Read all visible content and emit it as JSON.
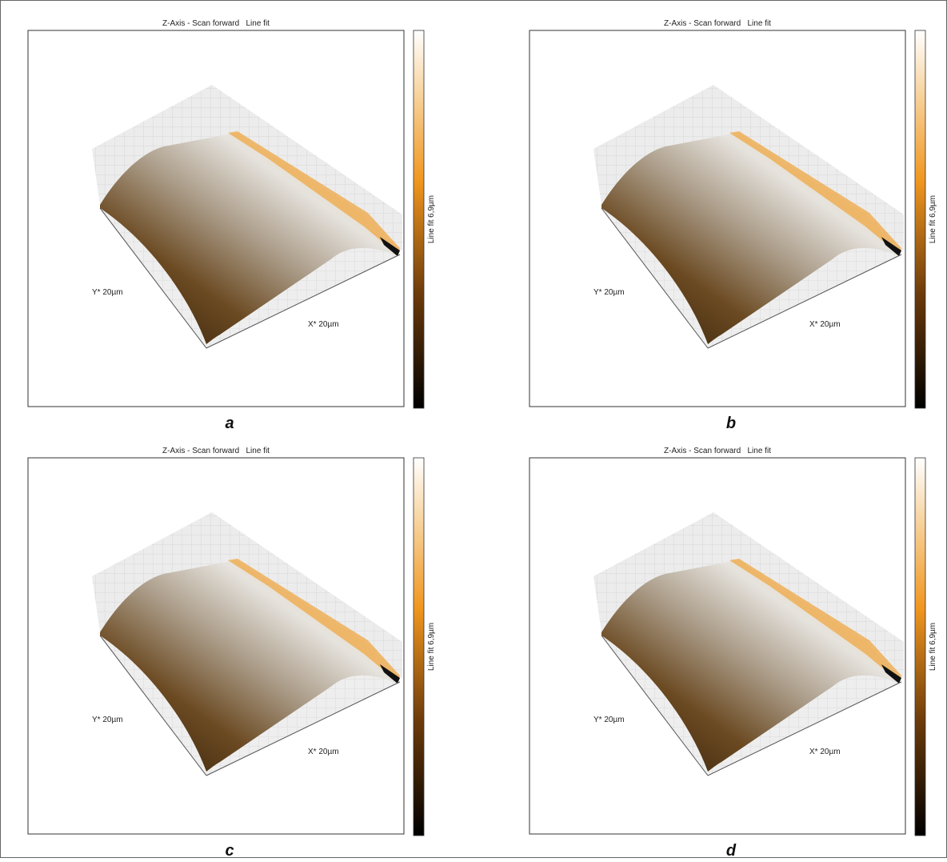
{
  "panels": [
    {
      "title": "Z-Axis - Scan forward   Line fit",
      "colorbar_label": "Line fit 6,9µm",
      "y_axis_label": "Y* 20µm",
      "x_axis_label": "X* 20µm",
      "caption": "a"
    },
    {
      "title": "Z-Axis - Scan forward   Line fit",
      "colorbar_label": "Line fit 6,9µm",
      "y_axis_label": "Y* 20µm",
      "x_axis_label": "X* 20µm",
      "caption": "b"
    },
    {
      "title": "Z-Axis - Scan forward   Line fit",
      "colorbar_label": "Line fit 6,9µm",
      "y_axis_label": "Y* 20µm",
      "x_axis_label": "X* 20µm",
      "caption": "c"
    },
    {
      "title": "Z-Axis - Scan forward   Line fit",
      "colorbar_label": "Line fit 6,9µm",
      "y_axis_label": "Y* 20µm",
      "x_axis_label": "X* 20µm",
      "caption": "d"
    }
  ]
}
